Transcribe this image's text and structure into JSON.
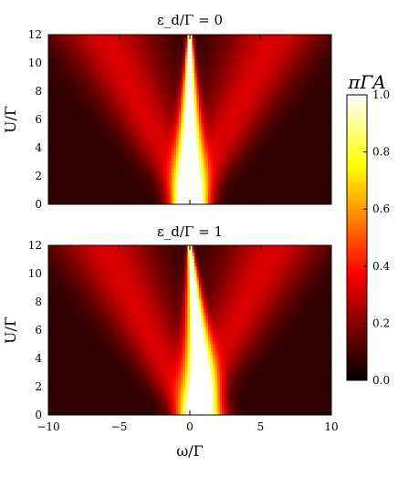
{
  "chart_data": [
    {
      "type": "heatmap",
      "title": "ε_d/Γ = 0",
      "xlabel": "",
      "ylabel": "U/Γ",
      "xlim": [
        -10,
        10
      ],
      "ylim": [
        0,
        12
      ],
      "xticks": [
        "",
        "",
        "",
        "",
        ""
      ],
      "yticks": [
        "0",
        "2",
        "4",
        "6",
        "8",
        "10",
        "12"
      ],
      "ridges": [
        {
          "name": "central",
          "center_at_U0": 0.0,
          "center_shift_per_U": 0.0,
          "width_at_U0": 1.2,
          "width_at_U12": 0.15,
          "peak": 1.0
        },
        {
          "name": "lower Hubbard",
          "center": "-U/2",
          "peak": 0.25
        },
        {
          "name": "upper Hubbard",
          "center": "U/2",
          "peak": 0.25
        }
      ]
    },
    {
      "type": "heatmap",
      "title": "ε_d/Γ = 1",
      "xlabel": "ω/Γ",
      "ylabel": "U/Γ",
      "xlim": [
        -10,
        10
      ],
      "ylim": [
        0,
        12
      ],
      "xticks": [
        "−10",
        "−5",
        "0",
        "5",
        "10"
      ],
      "yticks": [
        "0",
        "2",
        "4",
        "6",
        "8",
        "10",
        "12"
      ],
      "ridges": [
        {
          "name": "central",
          "center_at_U0": 1.0,
          "center_shift_per_U": -0.083,
          "width_at_U0": 1.3,
          "width_at_U12": 0.15,
          "peak": 1.0
        },
        {
          "name": "lower Hubbard",
          "center": "-U/2",
          "peak": 0.25
        },
        {
          "name": "upper Hubbard",
          "center": "U/2",
          "peak": 0.25
        }
      ]
    }
  ],
  "colorbar": {
    "label": "πΓA",
    "colormap": "hot",
    "range": [
      0.0,
      1.0
    ],
    "ticks": [
      "0.0",
      "0.2",
      "0.4",
      "0.6",
      "0.8",
      "1.0"
    ]
  }
}
